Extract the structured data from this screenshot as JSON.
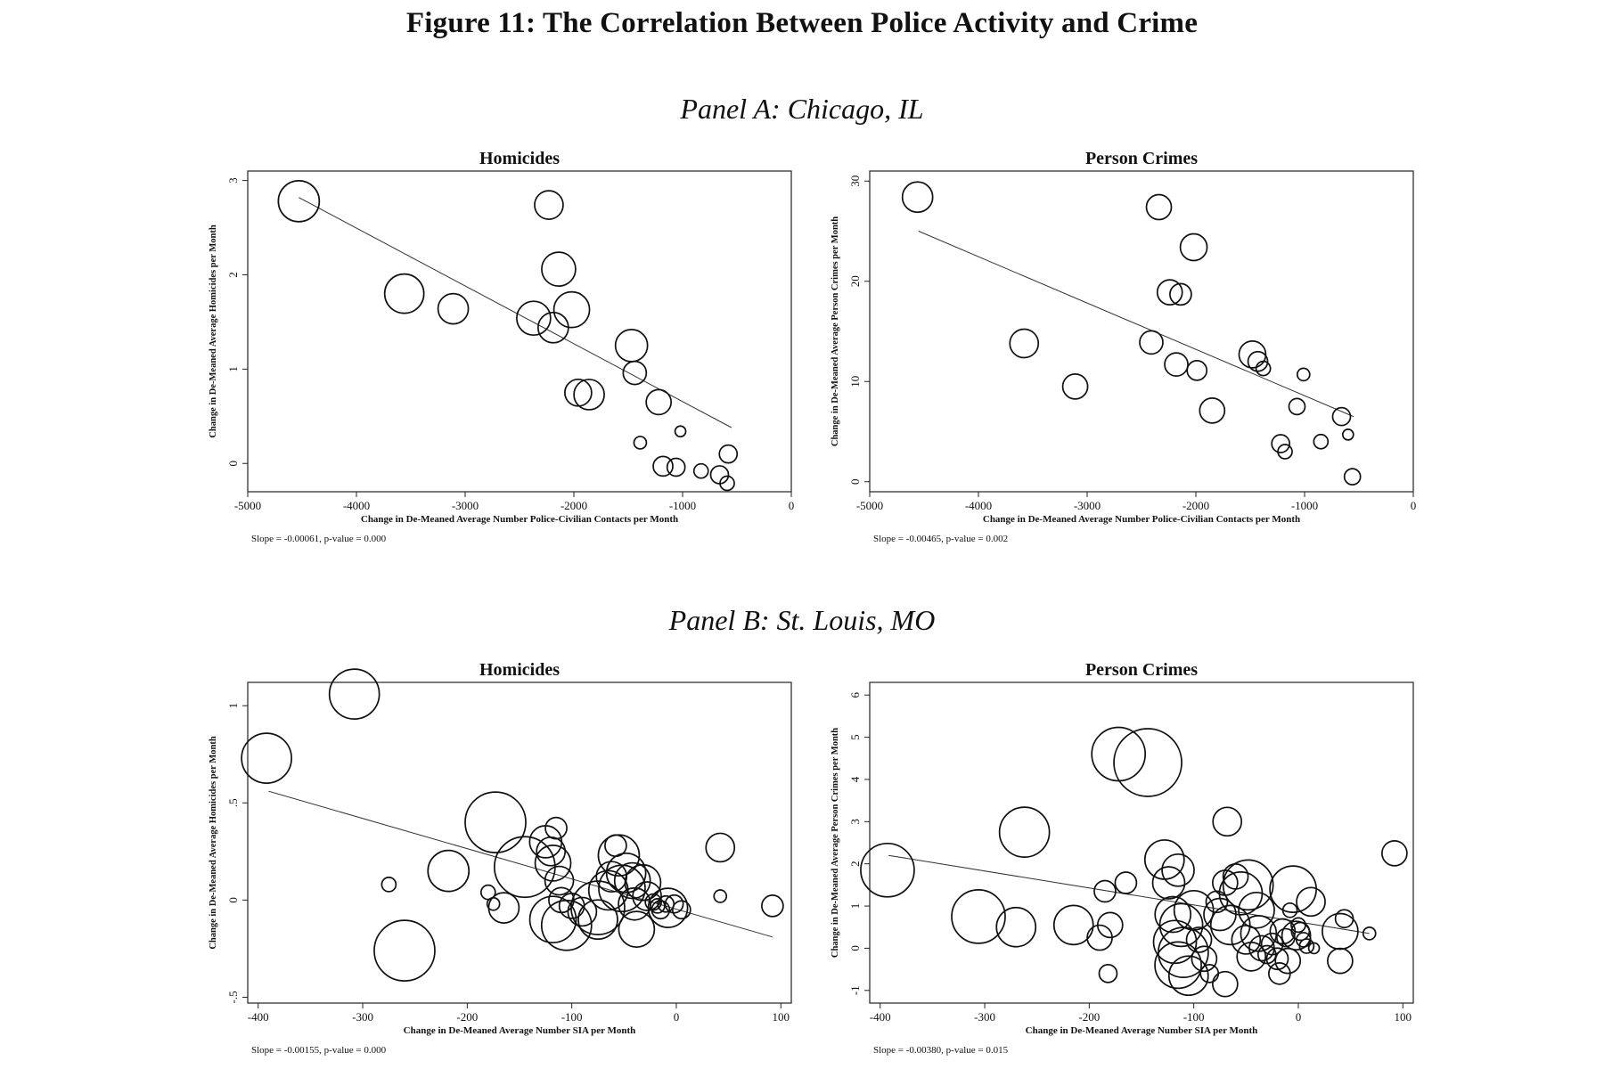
{
  "figure_title": "Figure 11: The Correlation Between Police Activity and Crime",
  "panels": [
    {
      "title": "Panel A: Chicago, IL"
    },
    {
      "title": "Panel B: St. Louis, MO"
    }
  ],
  "chart_data": [
    {
      "type": "scatter",
      "panel": "Panel A: Chicago, IL",
      "title": "Homicides",
      "xlabel": "Change in De-Meaned Average Number Police-Civilian Contacts per Month",
      "ylabel": "Change in De-Meaned Average Homicides per Month",
      "xlim": [
        -5000,
        0
      ],
      "ylim": [
        -0.3,
        3.1
      ],
      "xticks": [
        -5000,
        -4000,
        -3000,
        -2000,
        -1000,
        0
      ],
      "xtick_labels": [
        "-5000",
        "-4000",
        "-3000",
        "-2000",
        "-1000",
        "0"
      ],
      "yticks": [
        0,
        1,
        2,
        3
      ],
      "ytick_labels": [
        "0",
        "1",
        "2",
        "3"
      ],
      "grid": false,
      "note": "Slope = -0.00061,  p-value = 0.000",
      "fit_line": {
        "x": [
          -4530,
          -550
        ],
        "y": [
          2.82,
          0.38
        ]
      },
      "points": [
        {
          "x": -4530,
          "y": 2.78,
          "size": 23
        },
        {
          "x": -3560,
          "y": 1.8,
          "size": 22
        },
        {
          "x": -3110,
          "y": 1.64,
          "size": 17
        },
        {
          "x": -2230,
          "y": 2.74,
          "size": 16
        },
        {
          "x": -2140,
          "y": 2.06,
          "size": 19
        },
        {
          "x": -2370,
          "y": 1.54,
          "size": 19
        },
        {
          "x": -2020,
          "y": 1.63,
          "size": 20
        },
        {
          "x": -2190,
          "y": 1.44,
          "size": 17
        },
        {
          "x": -1470,
          "y": 1.25,
          "size": 18
        },
        {
          "x": -1440,
          "y": 0.96,
          "size": 13
        },
        {
          "x": -1960,
          "y": 0.75,
          "size": 15
        },
        {
          "x": -1860,
          "y": 0.73,
          "size": 17
        },
        {
          "x": -1220,
          "y": 0.65,
          "size": 14
        },
        {
          "x": -1390,
          "y": 0.22,
          "size": 7
        },
        {
          "x": -1020,
          "y": 0.34,
          "size": 6
        },
        {
          "x": -1180,
          "y": -0.03,
          "size": 11
        },
        {
          "x": -1060,
          "y": -0.04,
          "size": 10
        },
        {
          "x": -830,
          "y": -0.08,
          "size": 8
        },
        {
          "x": -660,
          "y": -0.12,
          "size": 10
        },
        {
          "x": -580,
          "y": 0.1,
          "size": 10
        },
        {
          "x": -590,
          "y": -0.21,
          "size": 8
        }
      ]
    },
    {
      "type": "scatter",
      "panel": "Panel A: Chicago, IL",
      "title": "Person Crimes",
      "xlabel": "Change in De-Meaned Average Number Police-Civilian Contacts per Month",
      "ylabel": "Change in De-Meaned Average Person Crimes per Month",
      "xlim": [
        -5000,
        0
      ],
      "ylim": [
        -1,
        31
      ],
      "xticks": [
        -5000,
        -4000,
        -3000,
        -2000,
        -1000,
        0
      ],
      "xtick_labels": [
        "-5000",
        "-4000",
        "-3000",
        "-2000",
        "-1000",
        "0"
      ],
      "yticks": [
        0,
        10,
        20,
        30
      ],
      "ytick_labels": [
        "0",
        "10",
        "20",
        "30"
      ],
      "grid": false,
      "note": "Slope = -0.00465,  p-value = 0.002",
      "fit_line": {
        "x": [
          -4550,
          -550
        ],
        "y": [
          25.0,
          6.5
        ]
      },
      "points": [
        {
          "x": -4560,
          "y": 28.4,
          "size": 17
        },
        {
          "x": -3580,
          "y": 13.8,
          "size": 16
        },
        {
          "x": -3110,
          "y": 9.5,
          "size": 14
        },
        {
          "x": -2340,
          "y": 27.4,
          "size": 14
        },
        {
          "x": -2020,
          "y": 23.4,
          "size": 15
        },
        {
          "x": -2240,
          "y": 18.9,
          "size": 14
        },
        {
          "x": -2140,
          "y": 18.7,
          "size": 12
        },
        {
          "x": -2410,
          "y": 13.9,
          "size": 13
        },
        {
          "x": -2180,
          "y": 11.7,
          "size": 13
        },
        {
          "x": -1990,
          "y": 11.1,
          "size": 11
        },
        {
          "x": -1850,
          "y": 7.1,
          "size": 14
        },
        {
          "x": -1480,
          "y": 12.7,
          "size": 15
        },
        {
          "x": -1430,
          "y": 12.0,
          "size": 11
        },
        {
          "x": -1380,
          "y": 11.3,
          "size": 8
        },
        {
          "x": -1010,
          "y": 10.7,
          "size": 7
        },
        {
          "x": -1070,
          "y": 7.5,
          "size": 9
        },
        {
          "x": -1220,
          "y": 3.8,
          "size": 10
        },
        {
          "x": -1180,
          "y": 3.0,
          "size": 8
        },
        {
          "x": -850,
          "y": 4.0,
          "size": 8
        },
        {
          "x": -660,
          "y": 6.5,
          "size": 10
        },
        {
          "x": -600,
          "y": 4.7,
          "size": 6
        },
        {
          "x": -560,
          "y": 0.5,
          "size": 9
        }
      ]
    },
    {
      "type": "scatter",
      "panel": "Panel B: St. Louis, MO",
      "title": "Homicides",
      "xlabel": "Change in De-Meaned Average Number SIA per Month",
      "ylabel": "Change in De-Meaned Average Homicides per Month",
      "xlim": [
        -410,
        110
      ],
      "ylim": [
        -0.53,
        1.12
      ],
      "xticks": [
        -400,
        -300,
        -200,
        -100,
        0,
        100
      ],
      "xtick_labels": [
        "-400",
        "-300",
        "-200",
        "-100",
        "0",
        "100"
      ],
      "yticks": [
        -0.5,
        0,
        0.5,
        1
      ],
      "ytick_labels": [
        "-.5",
        "0",
        ".5",
        "1"
      ],
      "grid": false,
      "note": "Slope = -0.00155,  p-value = 0.000",
      "fit_line": {
        "x": [
          -390,
          92
        ],
        "y": [
          0.56,
          -0.19
        ]
      },
      "points": [
        {
          "x": -392,
          "y": 0.73,
          "size": 28
        },
        {
          "x": -308,
          "y": 1.06,
          "size": 28
        },
        {
          "x": -173,
          "y": 0.4,
          "size": 34
        },
        {
          "x": -260,
          "y": -0.26,
          "size": 34
        },
        {
          "x": -218,
          "y": 0.15,
          "size": 23
        },
        {
          "x": -275,
          "y": 0.08,
          "size": 8
        },
        {
          "x": -180,
          "y": 0.04,
          "size": 8
        },
        {
          "x": -175,
          "y": -0.02,
          "size": 7
        },
        {
          "x": -165,
          "y": -0.04,
          "size": 17
        },
        {
          "x": -145,
          "y": 0.17,
          "size": 34
        },
        {
          "x": -125,
          "y": 0.3,
          "size": 18
        },
        {
          "x": -115,
          "y": 0.37,
          "size": 12
        },
        {
          "x": -120,
          "y": 0.25,
          "size": 16
        },
        {
          "x": -118,
          "y": 0.19,
          "size": 20
        },
        {
          "x": -112,
          "y": 0.1,
          "size": 16
        },
        {
          "x": -110,
          "y": 0.0,
          "size": 14
        },
        {
          "x": -118,
          "y": -0.1,
          "size": 26
        },
        {
          "x": -105,
          "y": -0.13,
          "size": 28
        },
        {
          "x": -100,
          "y": -0.03,
          "size": 14
        },
        {
          "x": -90,
          "y": -0.06,
          "size": 16
        },
        {
          "x": -75,
          "y": -0.04,
          "size": 30
        },
        {
          "x": -75,
          "y": -0.1,
          "size": 22
        },
        {
          "x": -65,
          "y": 0.05,
          "size": 22
        },
        {
          "x": -62,
          "y": 0.12,
          "size": 17
        },
        {
          "x": -55,
          "y": 0.23,
          "size": 23
        },
        {
          "x": -58,
          "y": 0.28,
          "size": 12
        },
        {
          "x": -52,
          "y": 0.06,
          "size": 26
        },
        {
          "x": -48,
          "y": 0.14,
          "size": 22
        },
        {
          "x": -42,
          "y": 0.1,
          "size": 20
        },
        {
          "x": -40,
          "y": -0.02,
          "size": 18
        },
        {
          "x": -38,
          "y": -0.15,
          "size": 20
        },
        {
          "x": -32,
          "y": 0.09,
          "size": 20
        },
        {
          "x": -28,
          "y": 0.02,
          "size": 16
        },
        {
          "x": -22,
          "y": -0.01,
          "size": 9
        },
        {
          "x": -18,
          "y": -0.03,
          "size": 8
        },
        {
          "x": -15,
          "y": -0.05,
          "size": 10
        },
        {
          "x": -10,
          "y": -0.02,
          "size": 9
        },
        {
          "x": -8,
          "y": -0.04,
          "size": 22
        },
        {
          "x": -2,
          "y": -0.02,
          "size": 10
        },
        {
          "x": 5,
          "y": -0.05,
          "size": 10
        },
        {
          "x": 42,
          "y": 0.27,
          "size": 16
        },
        {
          "x": 42,
          "y": 0.02,
          "size": 7
        },
        {
          "x": 92,
          "y": -0.03,
          "size": 12
        }
      ]
    },
    {
      "type": "scatter",
      "panel": "Panel B: St. Louis, MO",
      "title": "Person Crimes",
      "xlabel": "Change in De-Meaned Average Number SIA per Month",
      "ylabel": "Change in De-Meaned Average Person Crimes per Month",
      "xlim": [
        -410,
        110
      ],
      "ylim": [
        -1.3,
        6.3
      ],
      "xticks": [
        -400,
        -300,
        -200,
        -100,
        0,
        100
      ],
      "xtick_labels": [
        "-400",
        "-300",
        "-200",
        "-100",
        "0",
        "100"
      ],
      "yticks": [
        -1,
        0,
        1,
        2,
        3,
        4,
        5,
        6
      ],
      "ytick_labels": [
        "-1",
        "0",
        "1",
        "2",
        "3",
        "4",
        "5",
        "6"
      ],
      "grid": false,
      "note": "Slope = -0.00380,  p-value = 0.015",
      "fit_line": {
        "x": [
          -392,
          68
        ],
        "y": [
          2.2,
          0.35
        ]
      },
      "points": [
        {
          "x": -393,
          "y": 1.85,
          "size": 30
        },
        {
          "x": -306,
          "y": 0.75,
          "size": 30
        },
        {
          "x": -270,
          "y": 0.5,
          "size": 22
        },
        {
          "x": -262,
          "y": 2.75,
          "size": 28
        },
        {
          "x": -215,
          "y": 0.55,
          "size": 22
        },
        {
          "x": -190,
          "y": 0.25,
          "size": 14
        },
        {
          "x": -180,
          "y": 0.55,
          "size": 14
        },
        {
          "x": -185,
          "y": 1.35,
          "size": 12
        },
        {
          "x": -165,
          "y": 1.55,
          "size": 12
        },
        {
          "x": -172,
          "y": 4.6,
          "size": 30
        },
        {
          "x": -144,
          "y": 4.4,
          "size": 38
        },
        {
          "x": -182,
          "y": -0.6,
          "size": 10
        },
        {
          "x": -128,
          "y": 2.1,
          "size": 22
        },
        {
          "x": -115,
          "y": 1.85,
          "size": 18
        },
        {
          "x": -124,
          "y": 1.55,
          "size": 18
        },
        {
          "x": -120,
          "y": 0.8,
          "size": 20
        },
        {
          "x": -112,
          "y": 0.55,
          "size": 24
        },
        {
          "x": -118,
          "y": 0.15,
          "size": 24
        },
        {
          "x": -110,
          "y": -0.1,
          "size": 28
        },
        {
          "x": -115,
          "y": -0.4,
          "size": 26
        },
        {
          "x": -105,
          "y": -0.65,
          "size": 22
        },
        {
          "x": -100,
          "y": 0.9,
          "size": 22
        },
        {
          "x": -95,
          "y": 0.2,
          "size": 14
        },
        {
          "x": -90,
          "y": -0.25,
          "size": 14
        },
        {
          "x": -85,
          "y": -0.6,
          "size": 10
        },
        {
          "x": -78,
          "y": 1.1,
          "size": 12
        },
        {
          "x": -75,
          "y": 0.8,
          "size": 18
        },
        {
          "x": -70,
          "y": 1.55,
          "size": 14
        },
        {
          "x": -70,
          "y": -0.85,
          "size": 14
        },
        {
          "x": -68,
          "y": 3.0,
          "size": 16
        },
        {
          "x": -65,
          "y": 0.55,
          "size": 22
        },
        {
          "x": -60,
          "y": 1.7,
          "size": 14
        },
        {
          "x": -55,
          "y": 1.3,
          "size": 24
        },
        {
          "x": -50,
          "y": 0.2,
          "size": 16
        },
        {
          "x": -48,
          "y": 1.5,
          "size": 28
        },
        {
          "x": -45,
          "y": -0.2,
          "size": 16
        },
        {
          "x": -40,
          "y": 0.9,
          "size": 20
        },
        {
          "x": -38,
          "y": 0.35,
          "size": 20
        },
        {
          "x": -35,
          "y": 0.0,
          "size": 14
        },
        {
          "x": -30,
          "y": -0.15,
          "size": 10
        },
        {
          "x": -25,
          "y": 0.1,
          "size": 12
        },
        {
          "x": -20,
          "y": -0.25,
          "size": 12
        },
        {
          "x": -18,
          "y": -0.6,
          "size": 12
        },
        {
          "x": -15,
          "y": 0.4,
          "size": 14
        },
        {
          "x": -12,
          "y": 0.25,
          "size": 10
        },
        {
          "x": -10,
          "y": -0.3,
          "size": 14
        },
        {
          "x": -8,
          "y": 0.9,
          "size": 8
        },
        {
          "x": -5,
          "y": 1.4,
          "size": 26
        },
        {
          "x": -2,
          "y": 0.3,
          "size": 16
        },
        {
          "x": 0,
          "y": 0.55,
          "size": 8
        },
        {
          "x": 2,
          "y": 0.4,
          "size": 10
        },
        {
          "x": 5,
          "y": 0.2,
          "size": 8
        },
        {
          "x": 8,
          "y": 0.05,
          "size": 8
        },
        {
          "x": 12,
          "y": 1.1,
          "size": 16
        },
        {
          "x": 15,
          "y": 0.0,
          "size": 6
        },
        {
          "x": 40,
          "y": 0.4,
          "size": 20
        },
        {
          "x": 44,
          "y": 0.7,
          "size": 10
        },
        {
          "x": 40,
          "y": -0.3,
          "size": 14
        },
        {
          "x": 68,
          "y": 0.35,
          "size": 7
        },
        {
          "x": 92,
          "y": 2.25,
          "size": 14
        }
      ]
    }
  ]
}
